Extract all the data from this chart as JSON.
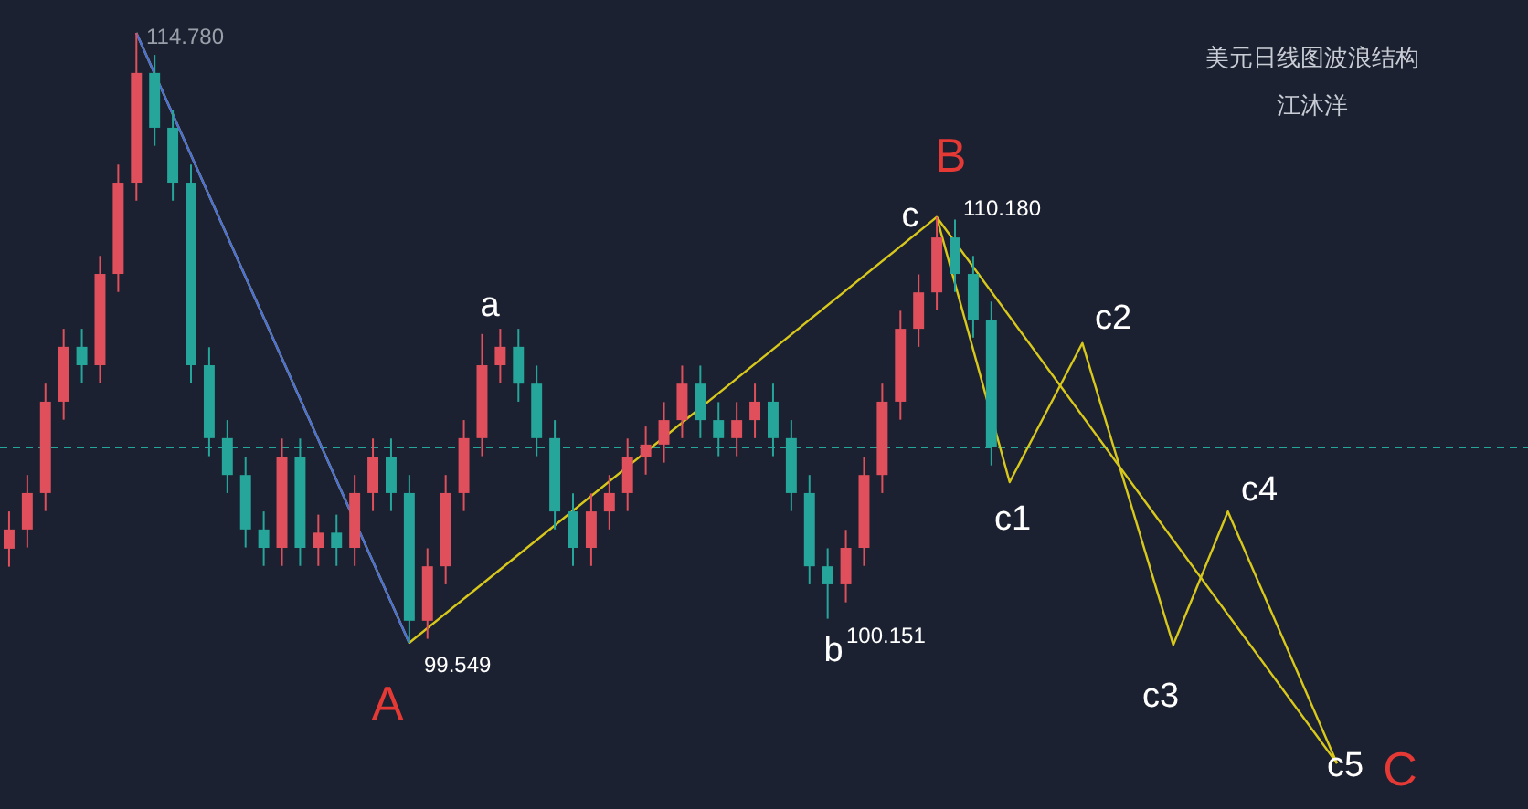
{
  "chart_data": {
    "type": "candlestick",
    "title": "美元日线图波浪结构",
    "subtitle": "江沐洋",
    "categories": [
      null,
      null,
      null,
      null,
      null,
      null,
      null,
      null,
      null,
      null,
      null,
      null,
      null,
      null,
      null,
      null,
      null,
      null,
      null,
      null,
      null,
      null,
      null,
      null,
      null,
      null,
      null,
      null,
      null,
      null,
      null,
      null,
      null,
      null,
      null,
      null,
      null,
      null,
      null,
      null,
      null,
      null,
      null,
      null,
      null,
      null,
      null,
      null,
      null,
      null,
      null,
      null,
      null,
      null,
      null,
      null,
      null,
      null,
      null,
      null,
      null,
      null,
      null,
      null,
      null,
      null,
      null,
      null,
      null,
      null,
      null,
      null,
      null,
      null,
      null,
      null,
      null,
      null,
      null,
      null,
      null,
      null,
      null,
      null
    ],
    "ohlc": [
      [
        101.9,
        102.83,
        101.45,
        102.38
      ],
      [
        102.38,
        103.74,
        101.93,
        103.29
      ],
      [
        103.29,
        106.02,
        102.84,
        105.57
      ],
      [
        105.57,
        107.39,
        105.12,
        106.94
      ],
      [
        106.94,
        107.39,
        106.03,
        106.48
      ],
      [
        106.48,
        109.21,
        106.03,
        108.76
      ],
      [
        108.76,
        111.49,
        108.31,
        111.04
      ],
      [
        111.04,
        114.78,
        110.59,
        113.78
      ],
      [
        113.78,
        114.23,
        111.96,
        112.41
      ],
      [
        112.41,
        112.86,
        110.59,
        111.04
      ],
      [
        111.04,
        111.49,
        106.03,
        106.48
      ],
      [
        106.48,
        106.93,
        104.21,
        104.66
      ],
      [
        104.66,
        105.11,
        103.29,
        103.74
      ],
      [
        103.74,
        104.19,
        101.93,
        102.38
      ],
      [
        102.38,
        102.83,
        101.47,
        101.92
      ],
      [
        101.92,
        104.65,
        101.47,
        104.2
      ],
      [
        104.2,
        104.65,
        101.47,
        101.92
      ],
      [
        101.92,
        102.75,
        101.47,
        102.3
      ],
      [
        102.3,
        102.75,
        101.47,
        101.92
      ],
      [
        101.92,
        103.74,
        101.47,
        103.29
      ],
      [
        103.29,
        104.65,
        102.84,
        104.2
      ],
      [
        104.2,
        104.65,
        102.84,
        103.29
      ],
      [
        103.29,
        103.74,
        99.549,
        100.1
      ],
      [
        100.1,
        101.91,
        99.65,
        101.46
      ],
      [
        101.46,
        103.74,
        101.01,
        103.29
      ],
      [
        103.29,
        105.11,
        102.84,
        104.66
      ],
      [
        104.66,
        107.26,
        104.21,
        106.48
      ],
      [
        106.48,
        107.39,
        106.03,
        106.94
      ],
      [
        106.94,
        107.39,
        105.57,
        106.02
      ],
      [
        106.02,
        106.47,
        104.21,
        104.66
      ],
      [
        104.66,
        105.11,
        102.38,
        102.83
      ],
      [
        102.83,
        103.28,
        101.47,
        101.92
      ],
      [
        101.92,
        103.28,
        101.47,
        102.83
      ],
      [
        102.83,
        103.74,
        102.38,
        103.29
      ],
      [
        103.29,
        104.65,
        102.84,
        104.2
      ],
      [
        104.2,
        104.95,
        103.75,
        104.5
      ],
      [
        104.5,
        105.56,
        104.05,
        105.11
      ],
      [
        105.11,
        106.47,
        104.66,
        106.02
      ],
      [
        106.02,
        106.47,
        104.66,
        105.11
      ],
      [
        105.11,
        105.56,
        104.21,
        104.66
      ],
      [
        104.66,
        105.56,
        104.21,
        105.11
      ],
      [
        105.11,
        106.02,
        104.66,
        105.57
      ],
      [
        105.57,
        106.02,
        104.21,
        104.66
      ],
      [
        104.66,
        105.11,
        102.84,
        103.29
      ],
      [
        103.29,
        103.74,
        101.01,
        101.46
      ],
      [
        101.46,
        101.91,
        100.151,
        101.01
      ],
      [
        101.01,
        102.37,
        100.56,
        101.92
      ],
      [
        101.92,
        104.19,
        101.47,
        103.74
      ],
      [
        103.74,
        106.02,
        103.29,
        105.57
      ],
      [
        105.57,
        107.84,
        105.12,
        107.39
      ],
      [
        107.39,
        108.75,
        106.94,
        108.3
      ],
      [
        108.3,
        110.18,
        107.85,
        109.67
      ],
      [
        109.67,
        110.12,
        108.31,
        108.76
      ],
      [
        108.76,
        109.21,
        107.17,
        107.62
      ],
      [
        107.62,
        108.07,
        103.98,
        104.43
      ],
      null,
      null,
      null,
      null,
      null,
      null,
      null,
      null,
      null,
      null,
      null,
      null,
      null,
      null,
      null,
      null,
      null,
      null,
      null,
      null,
      null,
      null,
      null,
      null,
      null,
      null,
      null,
      null,
      null
    ],
    "series": [
      {
        "type": "line",
        "color": "#d8c81c",
        "values": [
          null,
          null,
          null,
          null,
          null,
          null,
          null,
          114.78,
          null,
          null,
          null,
          null,
          null,
          null,
          null,
          null,
          null,
          null,
          null,
          null,
          null,
          null,
          99.549,
          null,
          null,
          null,
          null,
          null,
          null,
          null,
          null,
          null,
          null,
          null,
          null,
          null,
          null,
          null,
          null,
          null,
          null,
          null,
          null,
          null,
          null,
          null,
          null,
          null,
          null,
          null,
          null,
          110.18,
          null,
          null,
          null,
          null,
          null,
          null,
          null,
          null,
          null,
          null,
          null,
          null,
          null,
          null,
          null,
          null,
          null,
          null,
          null,
          null,
          null,
          96.54,
          null,
          null,
          null,
          null,
          null,
          null,
          null,
          null,
          null,
          null
        ]
      },
      {
        "type": "line",
        "color": "#4a6fd8",
        "values": [
          null,
          null,
          null,
          null,
          null,
          null,
          null,
          114.78,
          null,
          null,
          null,
          null,
          null,
          null,
          null,
          null,
          null,
          null,
          null,
          null,
          null,
          null,
          99.549,
          null,
          null,
          null,
          null,
          null,
          null,
          null,
          null,
          null,
          null,
          null,
          null,
          null,
          null,
          null,
          null,
          null,
          null,
          null,
          null,
          null,
          null,
          null,
          null,
          null,
          null,
          null,
          null,
          null,
          null,
          null,
          null,
          null,
          null,
          null,
          null,
          null,
          null,
          null,
          null,
          null,
          null,
          null,
          null,
          null,
          null,
          null,
          null,
          null,
          null,
          null,
          null,
          null,
          null,
          null,
          null,
          null,
          null,
          null,
          null,
          null
        ]
      },
      {
        "type": "line",
        "color": "#d8c81c",
        "values": [
          null,
          null,
          null,
          null,
          null,
          null,
          null,
          null,
          null,
          null,
          null,
          null,
          null,
          null,
          null,
          null,
          null,
          null,
          null,
          null,
          null,
          null,
          null,
          null,
          null,
          null,
          null,
          null,
          null,
          null,
          null,
          null,
          null,
          null,
          null,
          null,
          null,
          null,
          null,
          null,
          null,
          null,
          null,
          null,
          null,
          null,
          null,
          null,
          null,
          null,
          null,
          110.18,
          null,
          null,
          null,
          103.56,
          null,
          null,
          null,
          107.03,
          null,
          null,
          null,
          null,
          99.5,
          null,
          null,
          102.83,
          null,
          null,
          null,
          null,
          null,
          96.54,
          null,
          null,
          null,
          null,
          null,
          null,
          null,
          null,
          null,
          null
        ]
      }
    ],
    "ref_lines": [
      {
        "axis": "y",
        "value": 104.43,
        "color": "#26a69a",
        "line_style": "dashed"
      }
    ],
    "annotations": [
      "A",
      "B",
      "C",
      "114.780",
      "99.549",
      "110.180",
      "100.151",
      "a",
      "b",
      "c",
      "c1",
      "c2",
      "c3",
      "c4",
      "c5"
    ]
  }
}
